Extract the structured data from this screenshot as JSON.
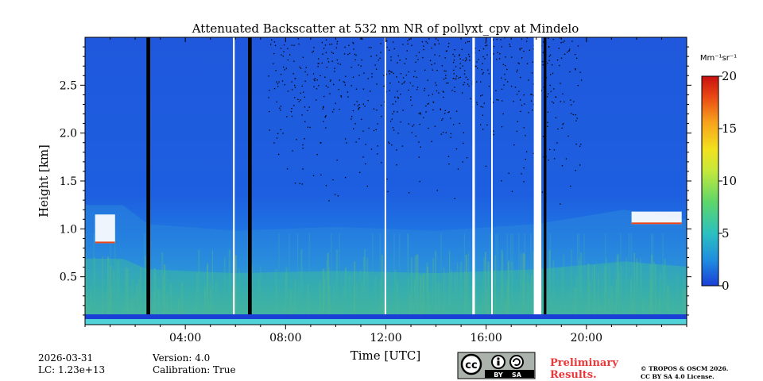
{
  "chart_data": {
    "type": "heatmap",
    "title": "Attenuated Backscatter at 532 nm NR of pollyxt_cpv at Mindelo",
    "xlabel": "Time [UTC]",
    "ylabel": "Height [km]",
    "xlim": [
      0,
      24
    ],
    "ylim": [
      0,
      3.0
    ],
    "xticks": [
      {
        "value": 4,
        "label": "04:00"
      },
      {
        "value": 8,
        "label": "08:00"
      },
      {
        "value": 12,
        "label": "12:00"
      },
      {
        "value": 16,
        "label": "16:00"
      },
      {
        "value": 20,
        "label": "20:00"
      }
    ],
    "yticks": [
      {
        "value": 0.5,
        "label": "0.5"
      },
      {
        "value": 1.0,
        "label": "1.0"
      },
      {
        "value": 1.5,
        "label": "1.5"
      },
      {
        "value": 2.0,
        "label": "2.0"
      },
      {
        "value": 2.5,
        "label": "2.5"
      }
    ],
    "colorbar": {
      "label": "Mm⁻¹sr⁻¹",
      "min": 0,
      "max": 20,
      "ticks": [
        {
          "value": 0,
          "label": "0"
        },
        {
          "value": 5,
          "label": "5"
        },
        {
          "value": 10,
          "label": "10"
        },
        {
          "value": 15,
          "label": "15"
        },
        {
          "value": 20,
          "label": "20"
        }
      ],
      "colors": [
        "#1a3fd6",
        "#1f8ce0",
        "#2bc0c0",
        "#5ed66a",
        "#c6e83a",
        "#f2e21e",
        "#f7a21c",
        "#ea4a14",
        "#c81010"
      ]
    },
    "gaps": [
      {
        "start": 2.45,
        "end": 2.6,
        "kind": "no-data-black"
      },
      {
        "start": 5.9,
        "end": 5.97,
        "kind": "no-signal-white"
      },
      {
        "start": 6.5,
        "end": 6.65,
        "kind": "no-data-black"
      },
      {
        "start": 11.95,
        "end": 12.0,
        "kind": "no-signal-white"
      },
      {
        "start": 15.45,
        "end": 15.55,
        "kind": "no-signal-white"
      },
      {
        "start": 16.2,
        "end": 16.25,
        "kind": "no-signal-white"
      },
      {
        "start": 17.9,
        "end": 18.2,
        "kind": "no-signal-white"
      },
      {
        "start": 18.3,
        "end": 18.4,
        "kind": "no-data-black"
      }
    ],
    "boundary_layer_top_km": [
      {
        "x": 0,
        "y": 1.25
      },
      {
        "x": 1.5,
        "y": 1.25
      },
      {
        "x": 2.5,
        "y": 1.05
      },
      {
        "x": 6,
        "y": 0.98
      },
      {
        "x": 10,
        "y": 1.02
      },
      {
        "x": 14,
        "y": 0.98
      },
      {
        "x": 18,
        "y": 1.05
      },
      {
        "x": 21.5,
        "y": 1.2
      },
      {
        "x": 24,
        "y": 1.1
      }
    ],
    "clouds": [
      {
        "x": [
          0.4,
          1.2
        ],
        "base_km": 0.85,
        "top_km": 1.15
      },
      {
        "x": [
          21.8,
          23.8
        ],
        "base_km": 1.05,
        "top_km": 1.18
      }
    ]
  },
  "footer": {
    "date": "2026-03-31",
    "lc": "LC: 1.23e+13",
    "version": "Version: 4.0",
    "calibration": "Calibration: True",
    "cc_label": "cc",
    "by_label": "BY",
    "sa_label": "SA",
    "preliminary_line1": "Preliminary",
    "preliminary_line2": "Results.",
    "copyright_line1": "© TROPOS & OSCM 2026.",
    "copyright_line2": "CC BY SA 4.0 License."
  }
}
